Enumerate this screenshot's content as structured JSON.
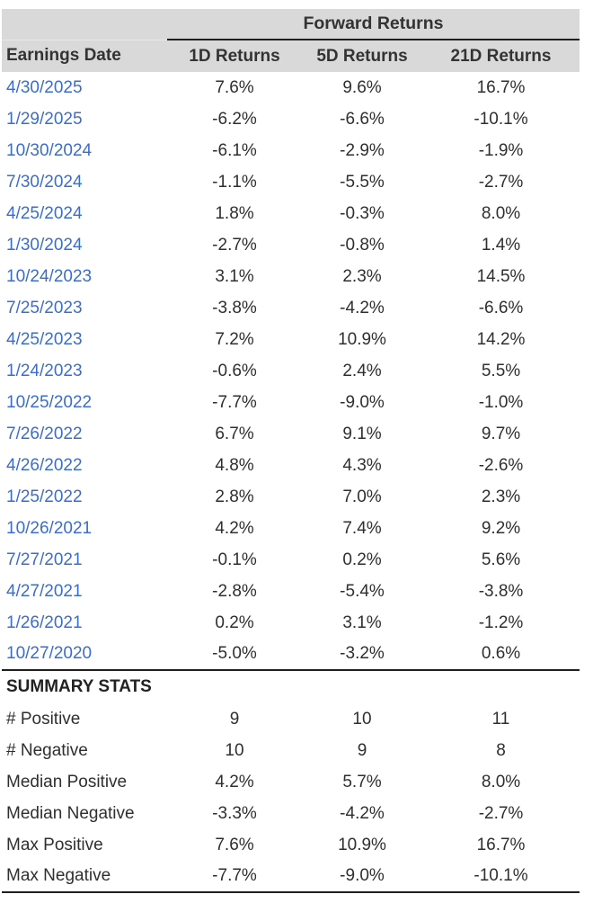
{
  "table": {
    "group_header": "Forward Returns",
    "columns": [
      "Earnings Date",
      "1D Returns",
      "5D Returns",
      "21D Returns"
    ],
    "rows": [
      {
        "date": "4/30/2025",
        "r1d": "7.6%",
        "r5d": "9.6%",
        "r21d": "16.7%"
      },
      {
        "date": "1/29/2025",
        "r1d": "-6.2%",
        "r5d": "-6.6%",
        "r21d": "-10.1%"
      },
      {
        "date": "10/30/2024",
        "r1d": "-6.1%",
        "r5d": "-2.9%",
        "r21d": "-1.9%"
      },
      {
        "date": "7/30/2024",
        "r1d": "-1.1%",
        "r5d": "-5.5%",
        "r21d": "-2.7%"
      },
      {
        "date": "4/25/2024",
        "r1d": "1.8%",
        "r5d": "-0.3%",
        "r21d": "8.0%"
      },
      {
        "date": "1/30/2024",
        "r1d": "-2.7%",
        "r5d": "-0.8%",
        "r21d": "1.4%"
      },
      {
        "date": "10/24/2023",
        "r1d": "3.1%",
        "r5d": "2.3%",
        "r21d": "14.5%"
      },
      {
        "date": "7/25/2023",
        "r1d": "-3.8%",
        "r5d": "-4.2%",
        "r21d": "-6.6%"
      },
      {
        "date": "4/25/2023",
        "r1d": "7.2%",
        "r5d": "10.9%",
        "r21d": "14.2%"
      },
      {
        "date": "1/24/2023",
        "r1d": "-0.6%",
        "r5d": "2.4%",
        "r21d": "5.5%"
      },
      {
        "date": "10/25/2022",
        "r1d": "-7.7%",
        "r5d": "-9.0%",
        "r21d": "-1.0%"
      },
      {
        "date": "7/26/2022",
        "r1d": "6.7%",
        "r5d": "9.1%",
        "r21d": "9.7%"
      },
      {
        "date": "4/26/2022",
        "r1d": "4.8%",
        "r5d": "4.3%",
        "r21d": "-2.6%"
      },
      {
        "date": "1/25/2022",
        "r1d": "2.8%",
        "r5d": "7.0%",
        "r21d": "2.3%"
      },
      {
        "date": "10/26/2021",
        "r1d": "4.2%",
        "r5d": "7.4%",
        "r21d": "9.2%"
      },
      {
        "date": "7/27/2021",
        "r1d": "-0.1%",
        "r5d": "0.2%",
        "r21d": "5.6%"
      },
      {
        "date": "4/27/2021",
        "r1d": "-2.8%",
        "r5d": "-5.4%",
        "r21d": "-3.8%"
      },
      {
        "date": "1/26/2021",
        "r1d": "0.2%",
        "r5d": "3.1%",
        "r21d": "-1.2%"
      },
      {
        "date": "10/27/2020",
        "r1d": "-5.0%",
        "r5d": "-3.2%",
        "r21d": "0.6%"
      }
    ],
    "summary_title": "SUMMARY STATS",
    "summary_rows": [
      {
        "label": "# Positive",
        "r1d": "9",
        "r5d": "10",
        "r21d": "11"
      },
      {
        "label": "# Negative",
        "r1d": "10",
        "r5d": "9",
        "r21d": "8"
      },
      {
        "label": "Median Positive",
        "r1d": "4.2%",
        "r5d": "5.7%",
        "r21d": "8.0%"
      },
      {
        "label": "Median Negative",
        "r1d": "-3.3%",
        "r5d": "-4.2%",
        "r21d": "-2.7%"
      },
      {
        "label": "Max Positive",
        "r1d": "7.6%",
        "r5d": "10.9%",
        "r21d": "16.7%"
      },
      {
        "label": "Max Negative",
        "r1d": "-7.7%",
        "r5d": "-9.0%",
        "r21d": "-10.1%"
      }
    ]
  },
  "colors": {
    "header_bg": "#d9d9d9",
    "link_blue": "#3b6dd0",
    "text_dark": "#2f2f2f",
    "rule_dark": "#1f1f1f"
  },
  "chart_data": {
    "type": "table",
    "title": "Forward Returns",
    "columns": [
      "Earnings Date",
      "1D Returns",
      "5D Returns",
      "21D Returns"
    ],
    "rows": [
      [
        "4/30/2025",
        7.6,
        9.6,
        16.7
      ],
      [
        "1/29/2025",
        -6.2,
        -6.6,
        -10.1
      ],
      [
        "10/30/2024",
        -6.1,
        -2.9,
        -1.9
      ],
      [
        "7/30/2024",
        -1.1,
        -5.5,
        -2.7
      ],
      [
        "4/25/2024",
        1.8,
        -0.3,
        8.0
      ],
      [
        "1/30/2024",
        -2.7,
        -0.8,
        1.4
      ],
      [
        "10/24/2023",
        3.1,
        2.3,
        14.5
      ],
      [
        "7/25/2023",
        -3.8,
        -4.2,
        -6.6
      ],
      [
        "4/25/2023",
        7.2,
        10.9,
        14.2
      ],
      [
        "1/24/2023",
        -0.6,
        2.4,
        5.5
      ],
      [
        "10/25/2022",
        -7.7,
        -9.0,
        -1.0
      ],
      [
        "7/26/2022",
        6.7,
        9.1,
        9.7
      ],
      [
        "4/26/2022",
        4.8,
        4.3,
        -2.6
      ],
      [
        "1/25/2022",
        2.8,
        7.0,
        2.3
      ],
      [
        "10/26/2021",
        4.2,
        7.4,
        9.2
      ],
      [
        "7/27/2021",
        -0.1,
        0.2,
        5.6
      ],
      [
        "4/27/2021",
        -2.8,
        -5.4,
        -3.8
      ],
      [
        "1/26/2021",
        0.2,
        3.1,
        -1.2
      ],
      [
        "10/27/2020",
        -5.0,
        -3.2,
        0.6
      ]
    ],
    "summary": {
      "num_positive": [
        9,
        10,
        11
      ],
      "num_negative": [
        10,
        9,
        8
      ],
      "median_positive_pct": [
        4.2,
        5.7,
        8.0
      ],
      "median_negative_pct": [
        -3.3,
        -4.2,
        -2.7
      ],
      "max_positive_pct": [
        7.6,
        10.9,
        16.7
      ],
      "max_negative_pct": [
        -7.7,
        -9.0,
        -10.1
      ]
    },
    "value_unit": "percent"
  }
}
